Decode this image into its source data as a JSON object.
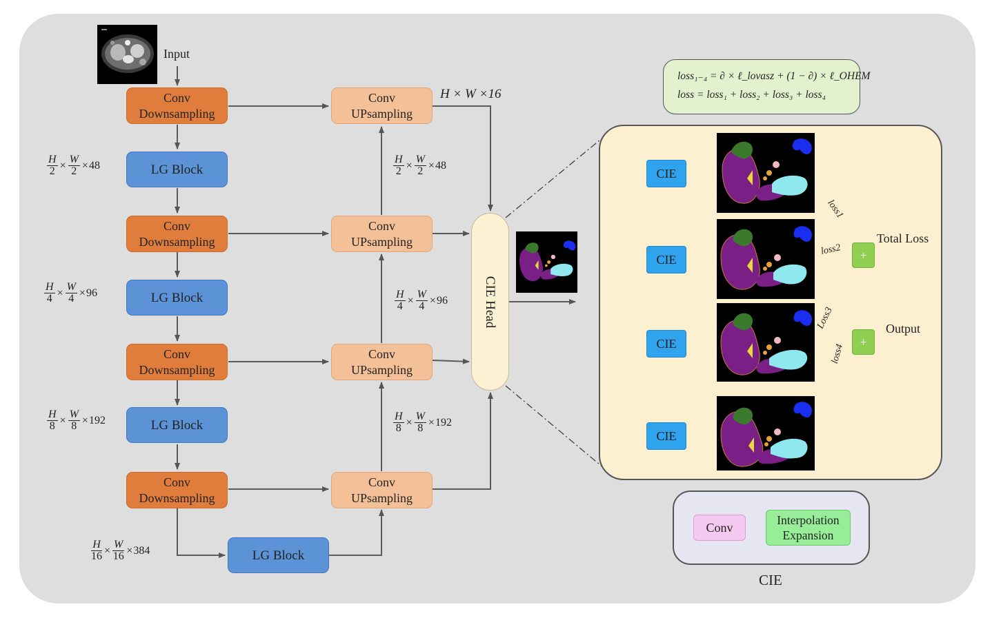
{
  "input_label": "Input",
  "encoder": {
    "down1": [
      "Conv",
      "Downsampling"
    ],
    "down2": [
      "Conv",
      "Downsampling"
    ],
    "down3": [
      "Conv",
      "Downsampling"
    ],
    "down4": [
      "Conv",
      "Downsampling"
    ],
    "lg1": "LG Block",
    "lg2": "LG Block",
    "lg3": "LG Block",
    "lg_bottom": "LG Block"
  },
  "decoder": {
    "up1": [
      "Conv",
      "UPsampling"
    ],
    "up2": [
      "Conv",
      "UPsampling"
    ],
    "up3": [
      "Conv",
      "UPsampling"
    ],
    "up4": [
      "Conv",
      "UPsampling"
    ]
  },
  "dims": {
    "d1": {
      "n1": "H",
      "d1": "2",
      "n2": "W",
      "d2": "2",
      "c": "48"
    },
    "d2": {
      "n1": "H",
      "d1": "4",
      "n2": "W",
      "d2": "4",
      "c": "96"
    },
    "d3": {
      "n1": "H",
      "d1": "8",
      "n2": "W",
      "d2": "8",
      "c": "192"
    },
    "d4": {
      "n1": "H",
      "d1": "16",
      "n2": "W",
      "d2": "16",
      "c": "384"
    },
    "top": "H × W ×16",
    "times": "×"
  },
  "cie_head": "CIE Head",
  "formula": {
    "line1": "loss₁₋₄ = ∂ × ℓ_lovasz + (1 − ∂) × ℓ_OHEM",
    "line2": "loss = loss₁ + loss₂ + loss₃ + loss₄"
  },
  "panel": {
    "cie_labels": [
      "CIE",
      "CIE",
      "CIE",
      "CIE"
    ],
    "loss_labels": [
      "loss1",
      "loss2",
      "Loss3",
      "loss4"
    ],
    "plus": "+",
    "total_loss": "Total Loss",
    "output": "Output"
  },
  "cie_module": {
    "conv": "Conv",
    "interp": [
      "Interpolation",
      "Expansion"
    ],
    "caption": "CIE"
  },
  "colors": {
    "down": "#e07d3c",
    "up": "#f3c097",
    "lg": "#5b93d6",
    "cie": "#2fa3ee",
    "plus": "#8fd052",
    "purple": "#7a1f86",
    "green": "#3b7a2c",
    "cyan": "#8fe8ef",
    "blue": "#1a2ef0",
    "orange": "#e8a23a",
    "pink": "#f2b8c0",
    "yellow": "#e8d83a"
  }
}
